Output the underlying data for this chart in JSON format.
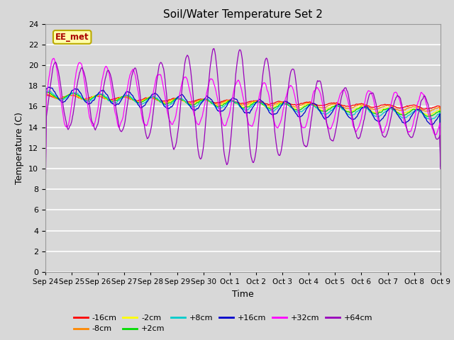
{
  "title": "Soil/Water Temperature Set 2",
  "xlabel": "Time",
  "ylabel": "Temperature (C)",
  "ylim": [
    0,
    24
  ],
  "yticks": [
    0,
    2,
    4,
    6,
    8,
    10,
    12,
    14,
    16,
    18,
    20,
    22,
    24
  ],
  "background_color": "#d8d8d8",
  "plot_bg_color": "#d8d8d8",
  "series": [
    {
      "label": "-16cm",
      "color": "#ff0000"
    },
    {
      "label": "-8cm",
      "color": "#ff8800"
    },
    {
      "label": "-2cm",
      "color": "#ffff00"
    },
    {
      "label": "+2cm",
      "color": "#00dd00"
    },
    {
      "label": "+8cm",
      "color": "#00cccc"
    },
    {
      "label": "+16cm",
      "color": "#0000cc"
    },
    {
      "label": "+32cm",
      "color": "#ff00ff"
    },
    {
      "label": "+64cm",
      "color": "#9900bb"
    }
  ],
  "annotation_text": "EE_met",
  "annotation_color": "#aa0000",
  "annotation_bg": "#ffffaa",
  "annotation_border": "#bbaa00",
  "x_tick_labels": [
    "Sep 24",
    "Sep 25",
    "Sep 26",
    "Sep 27",
    "Sep 28",
    "Sep 29",
    "Sep 30",
    "Oct 1",
    "Oct 2",
    "Oct 3",
    "Oct 4",
    "Oct 5",
    "Oct 6",
    "Oct 7",
    "Oct 8",
    "Oct 9"
  ],
  "n_points": 800,
  "days": 15
}
